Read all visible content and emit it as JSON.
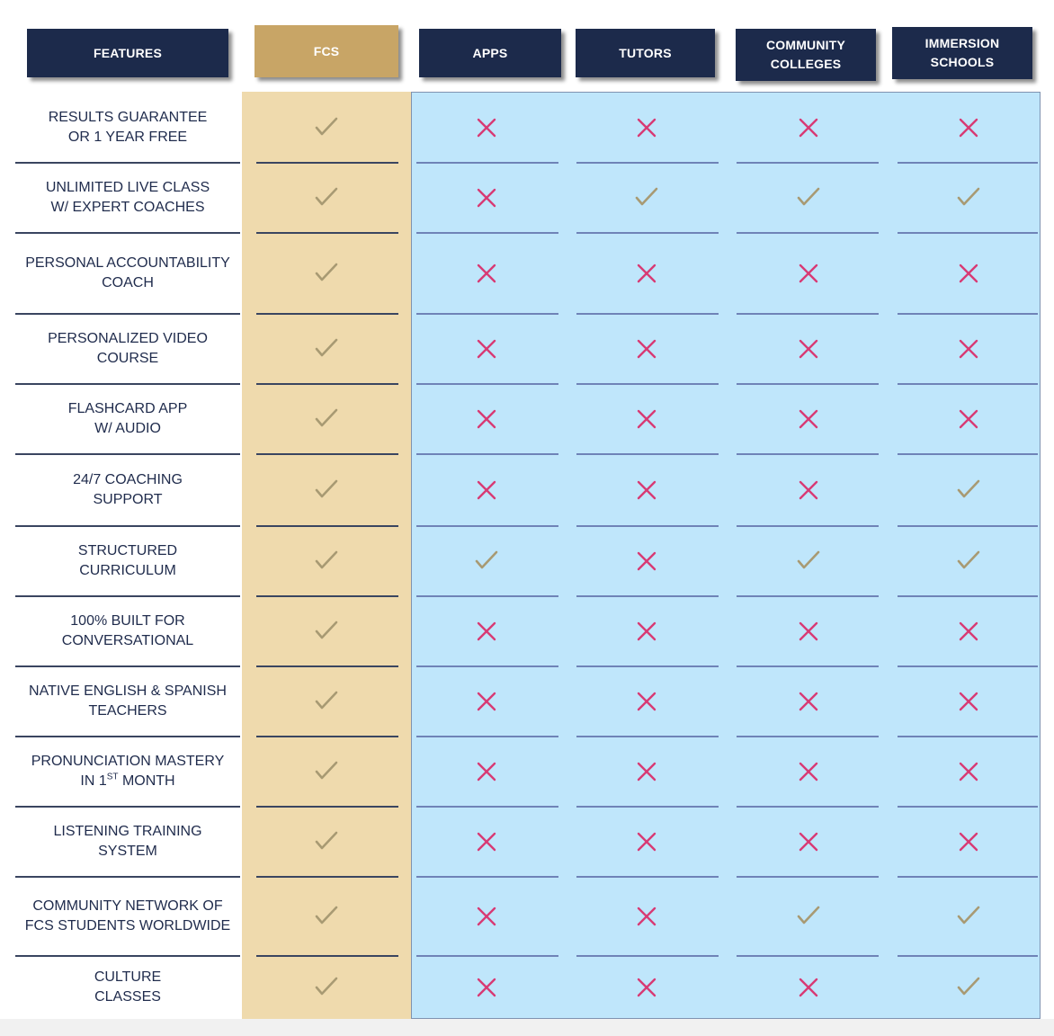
{
  "columns": [
    {
      "key": "features",
      "lines": [
        "FEATURES"
      ]
    },
    {
      "key": "fcs",
      "lines": [
        "FCS"
      ]
    },
    {
      "key": "apps",
      "lines": [
        "APPS"
      ]
    },
    {
      "key": "tutors",
      "lines": [
        "TUTORS"
      ]
    },
    {
      "key": "community",
      "lines": [
        "COMMUNITY",
        "COLLEGES"
      ]
    },
    {
      "key": "immersion",
      "lines": [
        "IMMERSION",
        "SCHOOLS"
      ]
    }
  ],
  "colors": {
    "header_navy": "#1c2a4b",
    "header_gold": "#c8a566",
    "fcs_bg": "#efdaad",
    "comp_bg": "#bfe6fb",
    "check": "#a89a73",
    "cross": "#d83a74",
    "text": "#1f2b4c"
  },
  "icons": {
    "yes": "check-icon",
    "no": "cross-icon"
  },
  "rows": [
    {
      "lines": [
        "RESULTS GUARANTEE",
        "OR 1 YEAR FREE"
      ],
      "values": [
        true,
        false,
        false,
        false,
        false
      ]
    },
    {
      "lines": [
        "UNLIMITED LIVE CLASS",
        "W/ EXPERT COACHES"
      ],
      "values": [
        true,
        false,
        true,
        true,
        true
      ]
    },
    {
      "lines": [
        "PERSONAL ACCOUNTABILITY",
        "COACH"
      ],
      "values": [
        true,
        false,
        false,
        false,
        false
      ]
    },
    {
      "lines": [
        "PERSONALIZED VIDEO",
        "COURSE"
      ],
      "values": [
        true,
        false,
        false,
        false,
        false
      ]
    },
    {
      "lines": [
        "FLASHCARD APP",
        "W/ AUDIO"
      ],
      "values": [
        true,
        false,
        false,
        false,
        false
      ]
    },
    {
      "lines": [
        "24/7 COACHING",
        "SUPPORT"
      ],
      "values": [
        true,
        false,
        false,
        false,
        true
      ]
    },
    {
      "lines": [
        "STRUCTURED",
        "CURRICULUM"
      ],
      "values": [
        true,
        true,
        false,
        true,
        true
      ]
    },
    {
      "lines": [
        "100% BUILT FOR",
        "CONVERSATIONAL"
      ],
      "values": [
        true,
        false,
        false,
        false,
        false
      ]
    },
    {
      "lines": [
        "NATIVE ENGLISH & SPANISH",
        "TEACHERS"
      ],
      "values": [
        true,
        false,
        false,
        false,
        false
      ]
    },
    {
      "lines": [
        "PRONUNCIATION MASTERY",
        "IN 1"
      ],
      "sup": "ST",
      "line2_tail": " MONTH",
      "values": [
        true,
        false,
        false,
        false,
        false
      ]
    },
    {
      "lines": [
        "LISTENING TRAINING",
        "SYSTEM"
      ],
      "values": [
        true,
        false,
        false,
        false,
        false
      ]
    },
    {
      "lines": [
        "COMMUNITY NETWORK OF",
        "FCS STUDENTS WORLDWIDE"
      ],
      "values": [
        true,
        false,
        false,
        true,
        true
      ]
    },
    {
      "lines": [
        "CULTURE",
        "CLASSES"
      ],
      "values": [
        true,
        false,
        false,
        false,
        true
      ]
    }
  ]
}
